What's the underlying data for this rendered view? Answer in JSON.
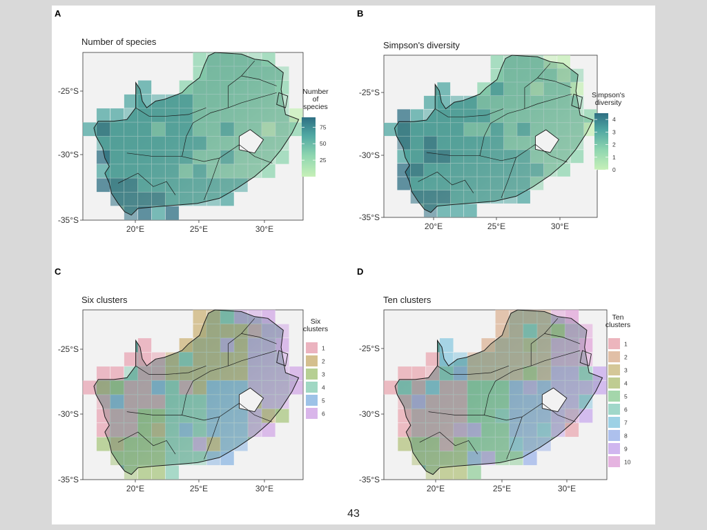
{
  "slide": {
    "page_number": "43"
  },
  "colors": {
    "panel_bg": "#f2f2f2",
    "terrain_low": "#4a8a84",
    "terrain_high": "#c9cfc8",
    "boundary": "#1a1a1a",
    "continuous_scale_low": "#c7f0b8",
    "continuous_scale_high": "#2e6f83"
  },
  "chart_data": [
    {
      "panel_label": "A",
      "title": "Number of species",
      "type": "heatmap",
      "x_ticks": [
        "20°E",
        "25°E",
        "30°E"
      ],
      "y_ticks": [
        "-25°S",
        "-30°S",
        "-35°S"
      ],
      "legend": {
        "kind": "continuous",
        "title_lines": [
          "Number",
          "of",
          "species"
        ],
        "breaks": [
          "75",
          "50",
          "25"
        ],
        "min": 0,
        "max": 90,
        "colors": [
          "#c7f0b8",
          "#8fd6b0",
          "#4fa7a2",
          "#2e6f83"
        ]
      }
    },
    {
      "panel_label": "B",
      "title": "Simpson's diversity",
      "type": "heatmap",
      "x_ticks": [
        "20°E",
        "25°E",
        "30°E"
      ],
      "y_ticks": [
        "-25°S",
        "-30°S",
        "-35°S"
      ],
      "legend": {
        "kind": "continuous",
        "title_lines": [
          "Simpson's",
          "diversity"
        ],
        "breaks": [
          "4",
          "3",
          "2",
          "1",
          "0"
        ],
        "min": 0,
        "max": 4.5,
        "colors": [
          "#c7f0b8",
          "#8fd6b0",
          "#4fa7a2",
          "#2e6f83"
        ]
      }
    },
    {
      "panel_label": "C",
      "title": "Six clusters",
      "type": "heatmap",
      "x_ticks": [
        "20°E",
        "25°E",
        "30°E"
      ],
      "y_ticks": [
        "-25°S",
        "-30°S",
        "-35°S"
      ],
      "legend": {
        "kind": "discrete",
        "title_lines": [
          "Six",
          "clusters"
        ],
        "items": [
          {
            "label": "1",
            "color": "#e8a6b4"
          },
          {
            "label": "2",
            "color": "#cdb47a"
          },
          {
            "label": "3",
            "color": "#a9c780"
          },
          {
            "label": "4",
            "color": "#8fd0b9"
          },
          {
            "label": "5",
            "color": "#8cb7e3"
          },
          {
            "label": "6",
            "color": "#d2a8e6"
          }
        ]
      }
    },
    {
      "panel_label": "D",
      "title": "Ten clusters",
      "type": "heatmap",
      "x_ticks": [
        "20°E",
        "25°E",
        "30°E"
      ],
      "y_ticks": [
        "-25°S",
        "-30°S",
        "-35°S"
      ],
      "legend": {
        "kind": "discrete",
        "title_lines": [
          "Ten",
          "clusters"
        ],
        "items": [
          {
            "label": "1",
            "color": "#e9a8b2"
          },
          {
            "label": "2",
            "color": "#dcb497"
          },
          {
            "label": "3",
            "color": "#cdbd86"
          },
          {
            "label": "4",
            "color": "#b4c37f"
          },
          {
            "label": "5",
            "color": "#94cf9c"
          },
          {
            "label": "6",
            "color": "#8fd0c0"
          },
          {
            "label": "7",
            "color": "#8cc9e0"
          },
          {
            "label": "8",
            "color": "#9fb5ea"
          },
          {
            "label": "9",
            "color": "#c8a9ec"
          },
          {
            "label": "10",
            "color": "#e1a6da"
          }
        ]
      }
    }
  ]
}
